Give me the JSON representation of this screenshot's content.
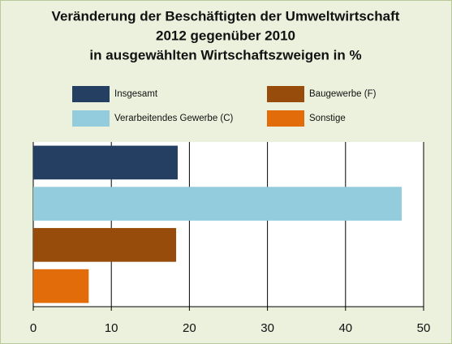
{
  "chart_data": {
    "type": "barh",
    "title": [
      "Veränderung der Beschäftigten der Umweltwirtschaft",
      "2012 gegenüber 2010",
      "in ausgewählten Wirtschaftszweigen in %"
    ],
    "categories": [
      "Insgesamt",
      "Verarbeitendes Gewerbe (C)",
      "Baugewerbe (F)",
      "Sonstige"
    ],
    "values": [
      18.5,
      47.2,
      18.3,
      7.1
    ],
    "colors": [
      "#253f62",
      "#93cddd",
      "#984c0c",
      "#e36c0a"
    ],
    "xlim": [
      0,
      50
    ],
    "xticks": [
      0,
      10,
      20,
      30,
      40,
      50
    ],
    "grid": true
  }
}
